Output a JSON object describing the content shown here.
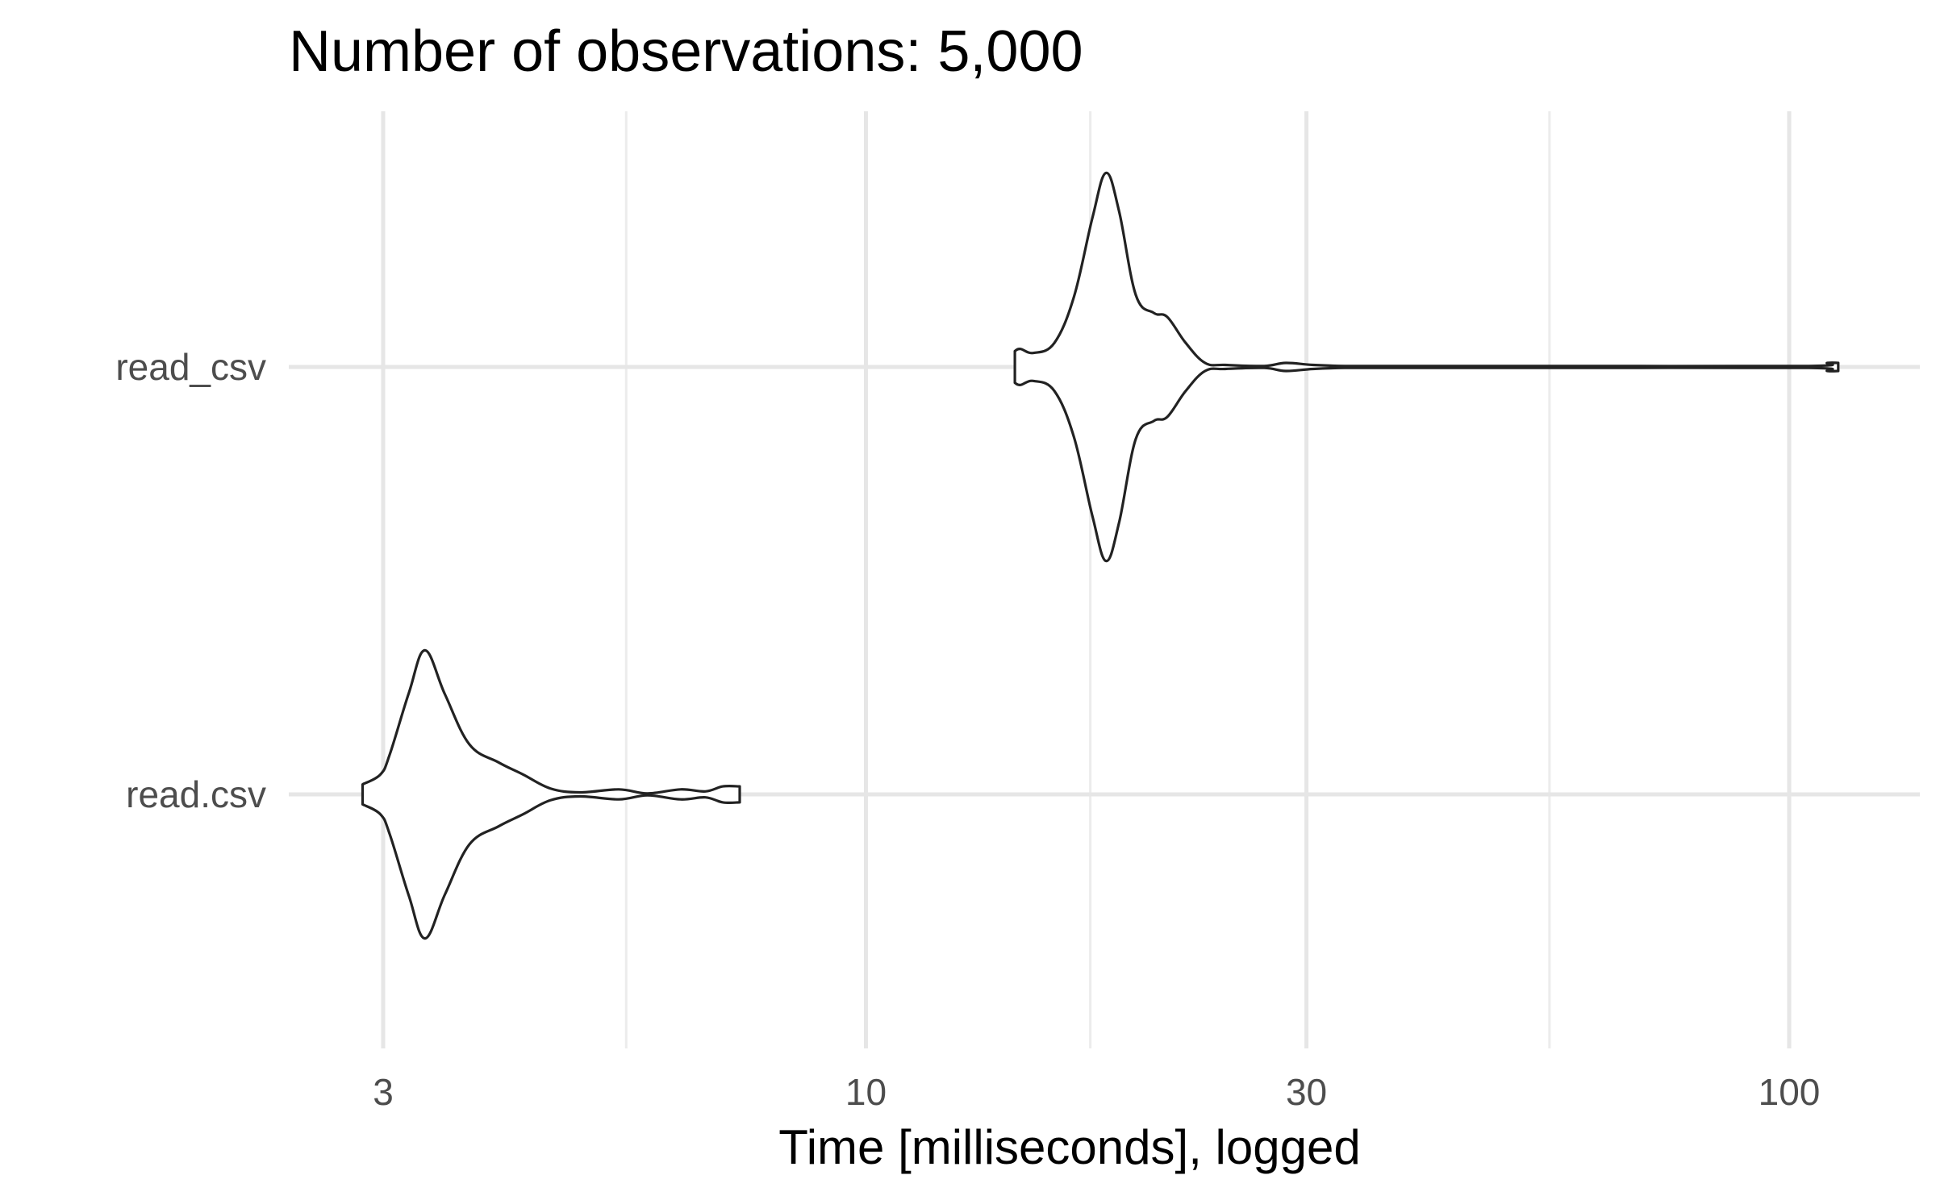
{
  "chart_data": {
    "type": "violin",
    "title": "Number of observations: 5,000",
    "xlabel": "Time [milliseconds], logged",
    "ylabel": "",
    "x_scale": "log10",
    "xlim": [
      2.8,
      120
    ],
    "x_ticks": [
      3,
      10,
      30,
      100
    ],
    "x_tick_labels": [
      "3",
      "10",
      "30",
      "100"
    ],
    "x_minor_ticks": [
      5.5,
      17.5,
      55
    ],
    "categories": [
      "read_csv",
      "read.csv"
    ],
    "grid": true,
    "legend": "none",
    "line_color": "#222222",
    "grid_color": "#e6e6e6",
    "series": [
      {
        "category": "read_csv",
        "min": 14.5,
        "max": 113,
        "density": [
          [
            14.5,
            0.08
          ],
          [
            14.7,
            0.09
          ],
          [
            15.2,
            0.07
          ],
          [
            16.0,
            0.12
          ],
          [
            16.8,
            0.35
          ],
          [
            17.6,
            0.75
          ],
          [
            18.2,
            0.97
          ],
          [
            18.8,
            0.78
          ],
          [
            19.6,
            0.36
          ],
          [
            20.5,
            0.27
          ],
          [
            21.2,
            0.25
          ],
          [
            22.2,
            0.12
          ],
          [
            23.3,
            0.02
          ],
          [
            24.5,
            0.01
          ],
          [
            27.0,
            0.005
          ],
          [
            28.5,
            0.02
          ],
          [
            30.5,
            0.01
          ],
          [
            33.0,
            0.005
          ],
          [
            38.0,
            0.001
          ],
          [
            60.0,
            0.0003
          ],
          [
            105.0,
            0.001
          ],
          [
            110.0,
            0.02
          ],
          [
            113.0,
            0.02
          ]
        ]
      },
      {
        "category": "read.csv",
        "min": 2.85,
        "max": 7.3,
        "density": [
          [
            2.85,
            0.05
          ],
          [
            2.98,
            0.1
          ],
          [
            3.05,
            0.2
          ],
          [
            3.2,
            0.51
          ],
          [
            3.33,
            0.72
          ],
          [
            3.5,
            0.5
          ],
          [
            3.72,
            0.25
          ],
          [
            4.0,
            0.16
          ],
          [
            4.25,
            0.1
          ],
          [
            4.55,
            0.03
          ],
          [
            4.9,
            0.01
          ],
          [
            5.4,
            0.025
          ],
          [
            5.8,
            0.005
          ],
          [
            6.3,
            0.025
          ],
          [
            6.7,
            0.015
          ],
          [
            7.0,
            0.04
          ],
          [
            7.3,
            0.04
          ]
        ]
      }
    ]
  }
}
